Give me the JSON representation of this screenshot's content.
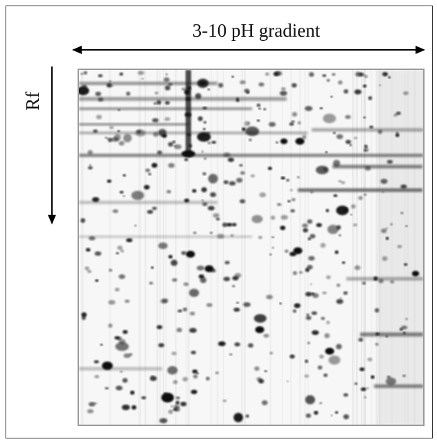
{
  "labels": {
    "horizontal": "3-10 pH gradient",
    "vertical": "Rf"
  }
}
